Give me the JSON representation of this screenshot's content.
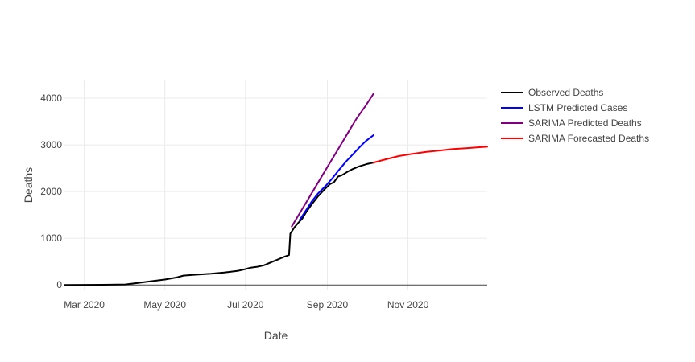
{
  "chart_data": {
    "type": "line",
    "xlabel": "Date",
    "ylabel": "Deaths",
    "x_range": [
      "2020-02-15",
      "2020-12-31"
    ],
    "y_range": [
      -100,
      4380
    ],
    "grid": true,
    "legend_position": "top-right",
    "x_ticks": [
      {
        "value": "2020-03-01",
        "label": "Mar 2020"
      },
      {
        "value": "2020-05-01",
        "label": "May 2020"
      },
      {
        "value": "2020-07-01",
        "label": "Jul 2020"
      },
      {
        "value": "2020-09-01",
        "label": "Sep 2020"
      },
      {
        "value": "2020-11-01",
        "label": "Nov 2020"
      }
    ],
    "y_ticks": [
      {
        "value": 0,
        "label": "0"
      },
      {
        "value": 1000,
        "label": "1000"
      },
      {
        "value": 2000,
        "label": "2000"
      },
      {
        "value": 3000,
        "label": "3000"
      },
      {
        "value": 4000,
        "label": "4000"
      }
    ],
    "series": [
      {
        "name": "Observed Deaths",
        "color": "#000000",
        "points": [
          [
            "2020-02-15",
            0
          ],
          [
            "2020-03-01",
            1
          ],
          [
            "2020-03-15",
            3
          ],
          [
            "2020-04-01",
            10
          ],
          [
            "2020-04-10",
            40
          ],
          [
            "2020-04-20",
            75
          ],
          [
            "2020-05-01",
            115
          ],
          [
            "2020-05-10",
            160
          ],
          [
            "2020-05-15",
            200
          ],
          [
            "2020-05-25",
            220
          ],
          [
            "2020-06-05",
            240
          ],
          [
            "2020-06-15",
            265
          ],
          [
            "2020-06-25",
            300
          ],
          [
            "2020-07-01",
            340
          ],
          [
            "2020-07-05",
            370
          ],
          [
            "2020-07-10",
            390
          ],
          [
            "2020-07-15",
            420
          ],
          [
            "2020-07-20",
            480
          ],
          [
            "2020-07-25",
            540
          ],
          [
            "2020-07-30",
            600
          ],
          [
            "2020-08-03",
            640
          ],
          [
            "2020-08-04",
            1100
          ],
          [
            "2020-08-07",
            1230
          ],
          [
            "2020-08-10",
            1330
          ],
          [
            "2020-08-13",
            1420
          ],
          [
            "2020-08-16",
            1560
          ],
          [
            "2020-08-20",
            1720
          ],
          [
            "2020-08-25",
            1900
          ],
          [
            "2020-08-30",
            2050
          ],
          [
            "2020-09-03",
            2160
          ],
          [
            "2020-09-06",
            2200
          ],
          [
            "2020-09-09",
            2320
          ],
          [
            "2020-09-12",
            2350
          ],
          [
            "2020-09-16",
            2420
          ],
          [
            "2020-09-20",
            2480
          ],
          [
            "2020-09-25",
            2540
          ],
          [
            "2020-10-01",
            2590
          ],
          [
            "2020-10-06",
            2620
          ]
        ]
      },
      {
        "name": "LSTM Predicted Cases",
        "color": "#0000ff",
        "points": [
          [
            "2020-08-11",
            1390
          ],
          [
            "2020-08-15",
            1560
          ],
          [
            "2020-08-20",
            1780
          ],
          [
            "2020-08-25",
            1960
          ],
          [
            "2020-08-31",
            2130
          ],
          [
            "2020-09-05",
            2290
          ],
          [
            "2020-09-10",
            2470
          ],
          [
            "2020-09-15",
            2640
          ],
          [
            "2020-09-20",
            2790
          ],
          [
            "2020-09-25",
            2940
          ],
          [
            "2020-09-30",
            3080
          ],
          [
            "2020-10-06",
            3210
          ]
        ]
      },
      {
        "name": "SARIMA Predicted Deaths",
        "color": "#800080",
        "points": [
          [
            "2020-08-05",
            1250
          ],
          [
            "2020-08-12",
            1580
          ],
          [
            "2020-08-19",
            1910
          ],
          [
            "2020-08-26",
            2240
          ],
          [
            "2020-09-02",
            2570
          ],
          [
            "2020-09-09",
            2900
          ],
          [
            "2020-09-16",
            3230
          ],
          [
            "2020-09-23",
            3560
          ],
          [
            "2020-09-30",
            3840
          ],
          [
            "2020-10-06",
            4100
          ]
        ]
      },
      {
        "name": "SARIMA Forecasted Deaths",
        "color": "#ff0000",
        "points": [
          [
            "2020-10-06",
            2620
          ],
          [
            "2020-10-15",
            2690
          ],
          [
            "2020-10-25",
            2760
          ],
          [
            "2020-11-05",
            2810
          ],
          [
            "2020-11-15",
            2850
          ],
          [
            "2020-11-25",
            2880
          ],
          [
            "2020-12-05",
            2910
          ],
          [
            "2020-12-15",
            2930
          ],
          [
            "2020-12-25",
            2950
          ],
          [
            "2020-12-31",
            2960
          ]
        ]
      }
    ]
  }
}
